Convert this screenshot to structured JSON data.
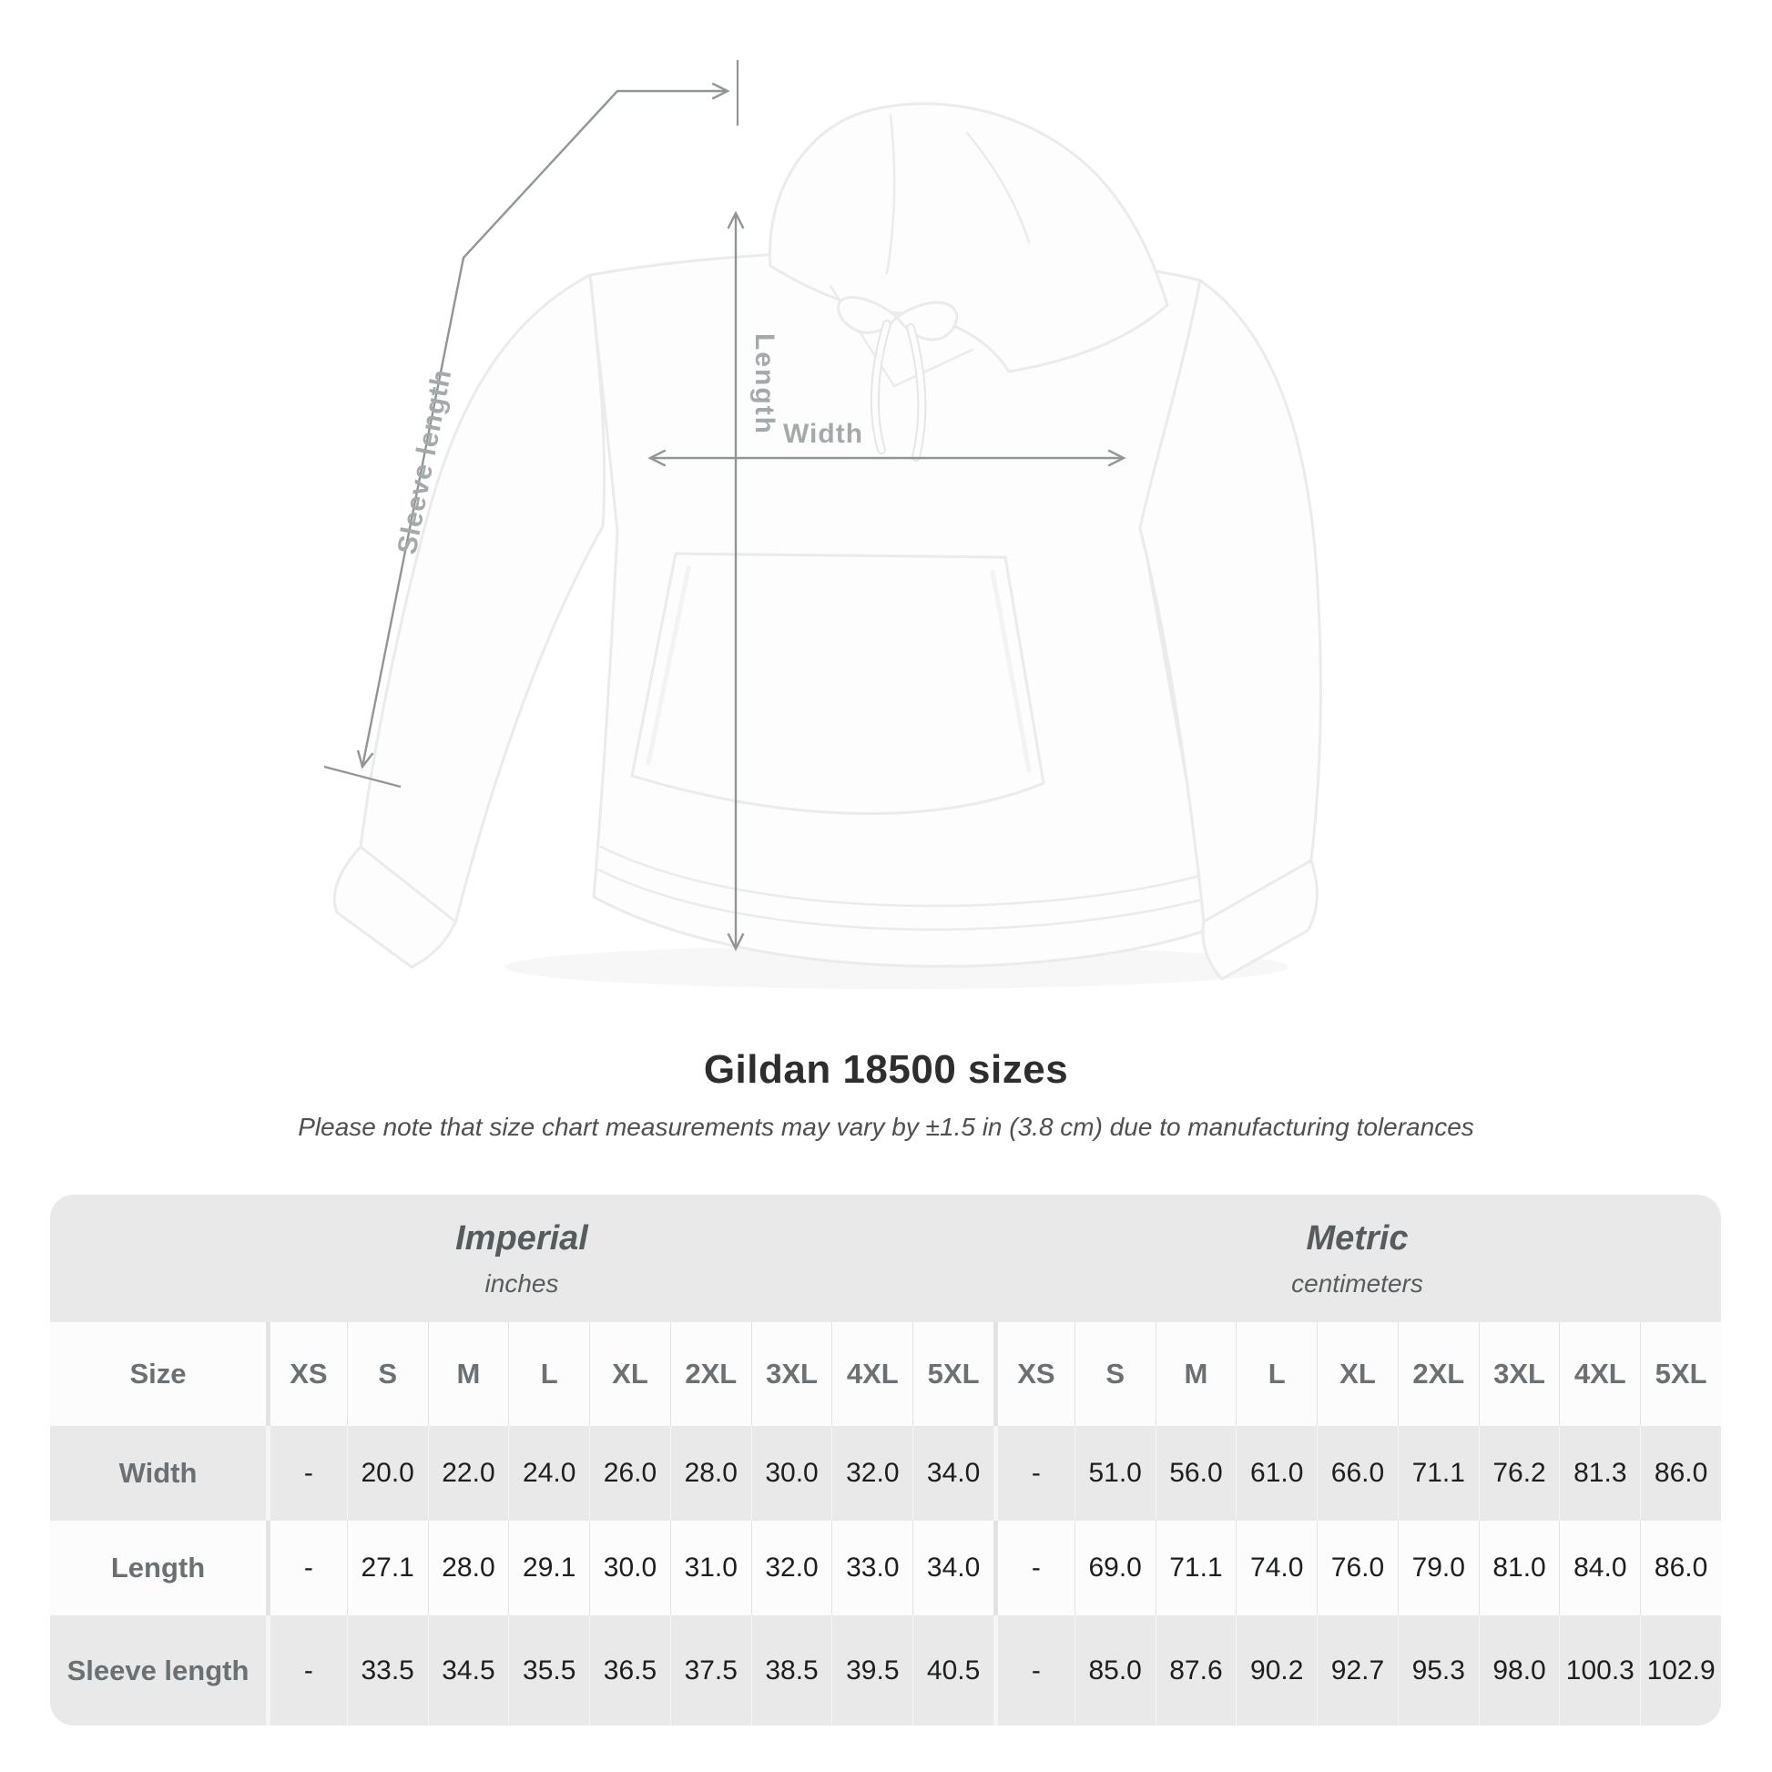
{
  "diagram": {
    "labels": {
      "length": "Length",
      "width": "Width",
      "sleeve": "Sleeve length"
    }
  },
  "heading": {
    "title": "Gildan 18500 sizes",
    "note": "Please note that size chart measurements may vary by ±1.5 in (3.8 cm) due to manufacturing tolerances"
  },
  "size_table": {
    "corner_label": "Size",
    "unit_groups": [
      {
        "name": "Imperial",
        "unit": "inches"
      },
      {
        "name": "Metric",
        "unit": "centimeters"
      }
    ],
    "columns": [
      "XS",
      "S",
      "M",
      "L",
      "XL",
      "2XL",
      "3XL",
      "4XL",
      "5XL",
      "XS",
      "S",
      "M",
      "L",
      "XL",
      "2XL",
      "3XL",
      "4XL",
      "5XL"
    ],
    "rows": [
      {
        "label": "Width",
        "values": [
          "-",
          "20.0",
          "22.0",
          "24.0",
          "26.0",
          "28.0",
          "30.0",
          "32.0",
          "34.0",
          "-",
          "51.0",
          "56.0",
          "61.0",
          "66.0",
          "71.1",
          "76.2",
          "81.3",
          "86.0"
        ]
      },
      {
        "label": "Length",
        "values": [
          "-",
          "27.1",
          "28.0",
          "29.1",
          "30.0",
          "31.0",
          "32.0",
          "33.0",
          "34.0",
          "-",
          "69.0",
          "71.1",
          "74.0",
          "76.0",
          "79.0",
          "81.0",
          "84.0",
          "86.0"
        ]
      },
      {
        "label": "Sleeve length",
        "values": [
          "-",
          "33.5",
          "34.5",
          "35.5",
          "36.5",
          "37.5",
          "38.5",
          "39.5",
          "40.5",
          "-",
          "85.0",
          "87.6",
          "90.2",
          "92.7",
          "95.3",
          "98.0",
          "100.3",
          "102.9"
        ]
      }
    ]
  },
  "colors": {
    "accent_line": "#909596",
    "measure_label": "#a4a9ab",
    "band_bg": "#e9e9e9",
    "row_alt_bg": "#e9e9e9",
    "row_light_bg": "#fcfcfc",
    "header_text": "#6a7073",
    "value_text": "#1d1f1f"
  }
}
